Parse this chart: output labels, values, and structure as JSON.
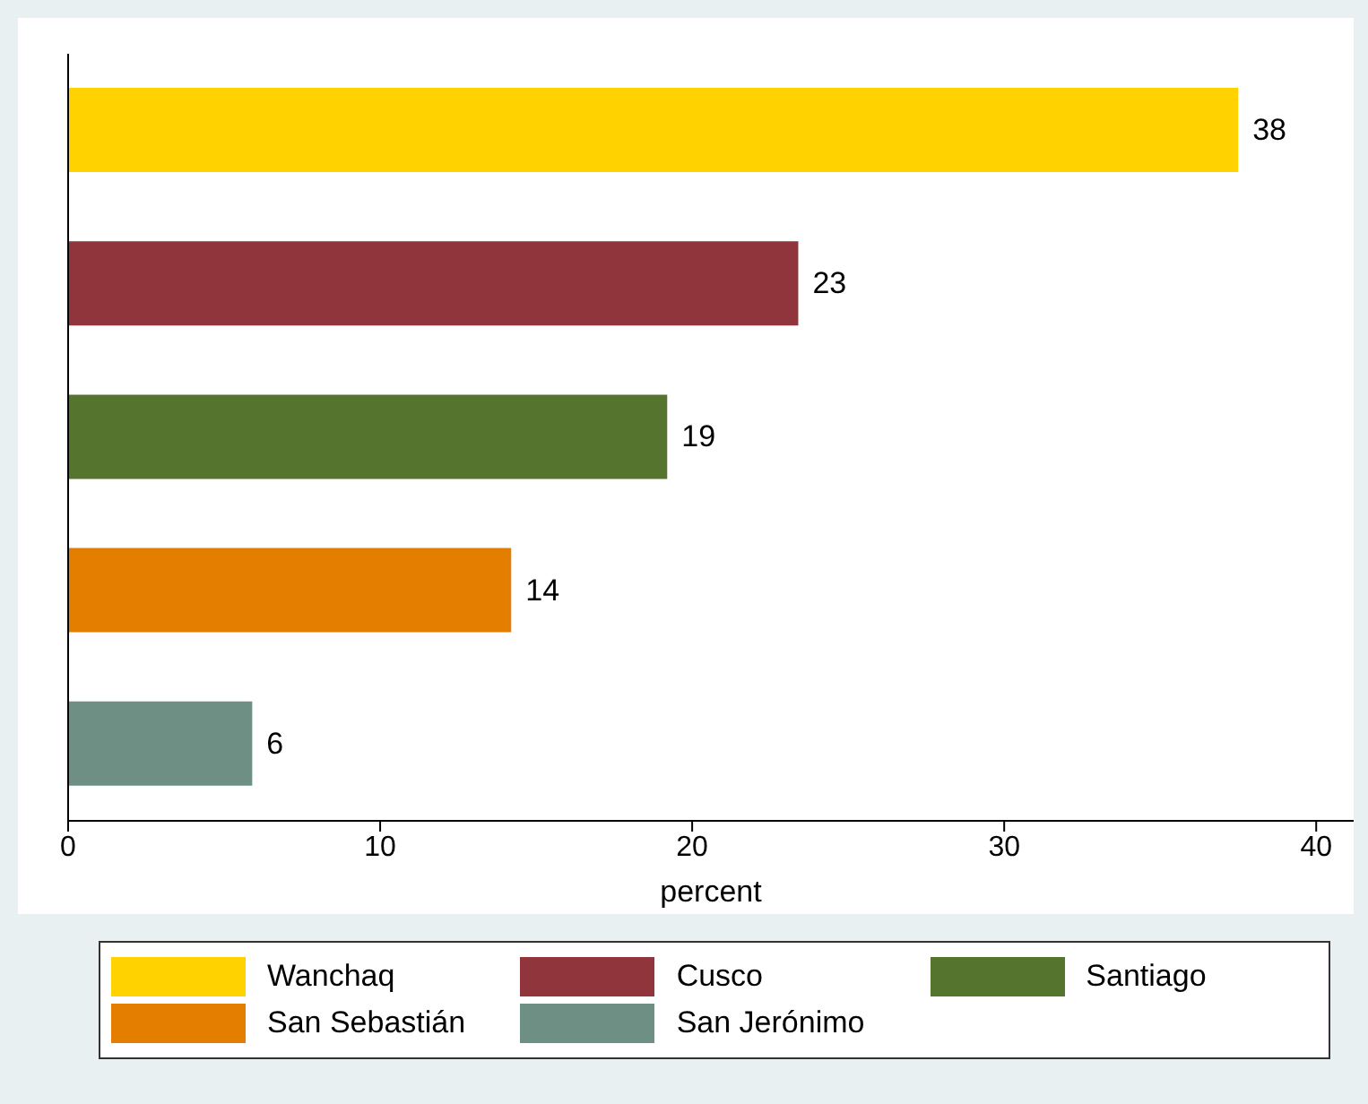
{
  "chart_data": {
    "type": "bar",
    "orientation": "horizontal",
    "xlabel": "percent",
    "categories": [
      null,
      null,
      null,
      null,
      null
    ],
    "series": [
      {
        "name": "Wanchaq",
        "color": "#ffd200",
        "values": [
          37.5,
          null,
          null,
          null,
          null
        ],
        "value_labels": [
          "38",
          null,
          null,
          null,
          null
        ]
      },
      {
        "name": "Cusco",
        "color": "#90353b",
        "values": [
          null,
          23.4,
          null,
          null,
          null
        ],
        "value_labels": [
          null,
          "23",
          null,
          null,
          null
        ]
      },
      {
        "name": "Santiago",
        "color": "#55752f",
        "values": [
          null,
          null,
          19.2,
          null,
          null
        ],
        "value_labels": [
          null,
          null,
          "19",
          null,
          null
        ]
      },
      {
        "name": "San Sebastián",
        "color": "#e37e00",
        "values": [
          null,
          null,
          null,
          14.2,
          null
        ],
        "value_labels": [
          null,
          null,
          null,
          "14",
          null
        ]
      },
      {
        "name": "San Jerónimo",
        "color": "#6e8f83",
        "values": [
          null,
          null,
          null,
          null,
          5.9
        ],
        "value_labels": [
          null,
          null,
          null,
          null,
          "6"
        ]
      }
    ],
    "xlim": [
      0,
      41.2
    ],
    "xticks": [
      0,
      10,
      20,
      30,
      40
    ],
    "grid": false,
    "legend": "bottom"
  }
}
